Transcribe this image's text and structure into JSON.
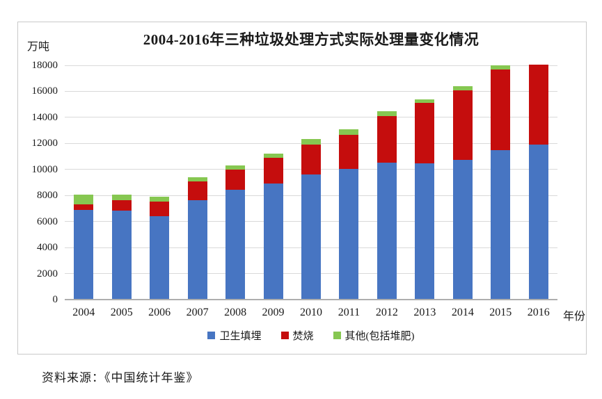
{
  "chart_data": {
    "type": "bar",
    "stacked": true,
    "title": "2004-2016年三种垃圾处理方式实际处理量变化情况",
    "unit": "万吨",
    "xlabel": "年份",
    "categories": [
      "2004",
      "2005",
      "2006",
      "2007",
      "2008",
      "2009",
      "2010",
      "2011",
      "2012",
      "2013",
      "2014",
      "2015",
      "2016"
    ],
    "series": [
      {
        "name": "卫生填埋",
        "color": "#4775C2",
        "values": [
          6889,
          6858,
          6408,
          7633,
          8424,
          8899,
          9598,
          10064,
          10513,
          10493,
          10744,
          11483,
          11900
        ]
      },
      {
        "name": "焚烧",
        "color": "#C50D0D",
        "values": [
          449,
          791,
          1138,
          1435,
          1570,
          2022,
          2317,
          2599,
          3584,
          4634,
          5330,
          6176,
          6150
        ]
      },
      {
        "name": "其他(包括堆肥)",
        "color": "#86C751",
        "values": [
          751,
          402,
          340,
          337,
          316,
          312,
          403,
          426,
          375,
          268,
          319,
          354,
          0
        ]
      }
    ],
    "ylim": [
      0,
      18000
    ],
    "ytick_step": 2000,
    "ytick_labels": [
      "0",
      "2000",
      "4000",
      "6000",
      "8000",
      "10000",
      "12000",
      "14000",
      "16000",
      "18000"
    ],
    "grid": true,
    "legend_position": "bottom",
    "colors": {
      "gridline": "#d9d9d9",
      "axis_line": "#aeaeae",
      "box_border": "#c9c9c9",
      "background": "#ffffff"
    }
  },
  "source_note": "资料来源：《中国统计年鉴》"
}
